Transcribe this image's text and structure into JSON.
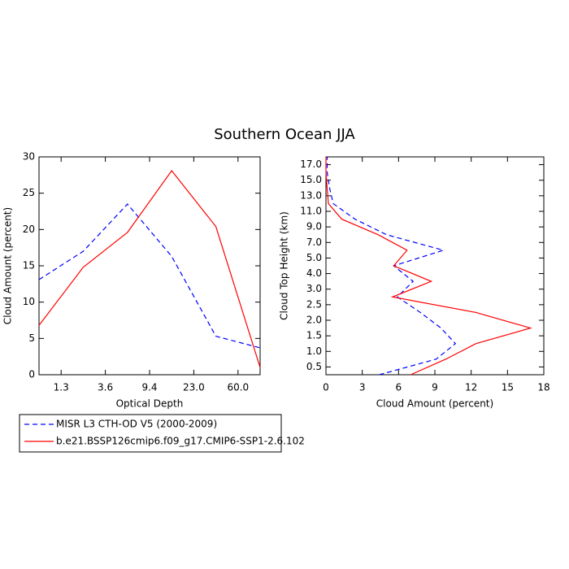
{
  "title": "Southern Ocean JJA",
  "chart_data": [
    {
      "type": "line",
      "orientation": "vertical",
      "x_label": "Optical Depth",
      "y_label": "Cloud Amount (percent)",
      "xlim": [
        0,
        5
      ],
      "xticks": [
        {
          "value": 0.5,
          "label": "1.3"
        },
        {
          "value": 1.5,
          "label": "3.6"
        },
        {
          "value": 2.5,
          "label": "9.4"
        },
        {
          "value": 3.5,
          "label": "23.0"
        },
        {
          "value": 4.5,
          "label": "60.0"
        }
      ],
      "ylim": [
        0,
        30
      ],
      "yticks": [
        0,
        5,
        10,
        15,
        20,
        25,
        30
      ],
      "series": [
        {
          "name": "MISR L3 CTH-OD V5 (2000-2009)",
          "color": "#0000ff",
          "dashed": true,
          "values": [
            13.1,
            17.0,
            23.5,
            16.3,
            5.3,
            3.7
          ]
        },
        {
          "name": "b.e21.BSSP126cmip6.f09_g17.CMIP6-SSP1-2.6.102",
          "color": "#ff0000",
          "dashed": false,
          "values": [
            6.8,
            14.8,
            19.6,
            28.1,
            20.4,
            1.0
          ]
        }
      ]
    },
    {
      "type": "line",
      "orientation": "horizontal",
      "x_label": "Cloud Amount (percent)",
      "y_label": "Cloud Top Height (km)",
      "xlim": [
        0,
        18
      ],
      "xticks": [
        0,
        3,
        6,
        9,
        12,
        15,
        18
      ],
      "ylim": [
        0,
        14
      ],
      "yticks": [
        {
          "value": 0.5,
          "label": "0.5"
        },
        {
          "value": 1.5,
          "label": "1.0"
        },
        {
          "value": 2.5,
          "label": "1.5"
        },
        {
          "value": 3.5,
          "label": "2.0"
        },
        {
          "value": 4.5,
          "label": "2.5"
        },
        {
          "value": 5.5,
          "label": "3.0"
        },
        {
          "value": 6.5,
          "label": "4.0"
        },
        {
          "value": 7.5,
          "label": "5.0"
        },
        {
          "value": 8.5,
          "label": "7.0"
        },
        {
          "value": 9.5,
          "label": "9.0"
        },
        {
          "value": 10.5,
          "label": "11.0"
        },
        {
          "value": 11.5,
          "label": "13.0"
        },
        {
          "value": 12.5,
          "label": "15.0"
        },
        {
          "value": 13.5,
          "label": "17.0"
        }
      ],
      "series": [
        {
          "color": "#0000ff",
          "dashed": true,
          "values": [
            4.4,
            9.1,
            10.7,
            9.5,
            7.8,
            5.9,
            7.2,
            5.6,
            9.7,
            5.0,
            2.4,
            0.6,
            0.3,
            0.1,
            0.1
          ]
        },
        {
          "color": "#ff0000",
          "dashed": false,
          "values": [
            7.0,
            9.9,
            12.4,
            16.9,
            12.4,
            5.5,
            8.7,
            5.6,
            6.7,
            4.3,
            1.3,
            0.2,
            0.1,
            0.0,
            0.0
          ]
        }
      ]
    }
  ]
}
